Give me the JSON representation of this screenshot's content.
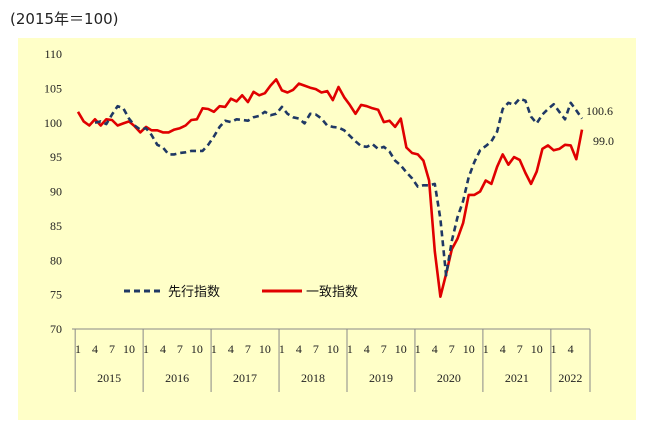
{
  "unit_label": "(2015年＝100)",
  "colors": {
    "background": "#FFFFC8",
    "leading": "#1F3864",
    "coincident": "#E00000"
  },
  "chart_data": {
    "type": "line",
    "ylim": [
      70,
      110
    ],
    "yticks": [
      70,
      75,
      80,
      85,
      90,
      95,
      100,
      105,
      110
    ],
    "grid": false,
    "legend_position": "center-left",
    "month_tick_labels": [
      "1",
      "4",
      "7",
      "10",
      "1",
      "4",
      "7",
      "10",
      "1",
      "4",
      "7",
      "10",
      "1",
      "4",
      "7",
      "10",
      "1",
      "4",
      "7",
      "10",
      "1",
      "4",
      "7",
      "10",
      "1",
      "4",
      "7",
      "10",
      "1",
      "4"
    ],
    "years": [
      "2015",
      "2016",
      "2017",
      "2018",
      "2019",
      "2020",
      "2021",
      "2022"
    ],
    "x_start": "2015-01",
    "series": [
      {
        "name": "先行指数",
        "style": "dashed",
        "end_label": "100.6",
        "values": [
          100.0,
          100.2,
          99.8,
          101.2,
          102.4,
          102.1,
          100.6,
          99.6,
          99.0,
          99.2,
          98.2,
          96.8,
          96.4,
          95.4,
          95.4,
          95.6,
          95.7,
          95.9,
          95.9,
          95.9,
          96.8,
          98.0,
          99.4,
          100.3,
          100.1,
          100.5,
          100.4,
          100.3,
          100.8,
          101.0,
          101.6,
          101.1,
          101.3,
          102.3,
          101.3,
          100.8,
          100.6,
          99.9,
          101.3,
          101.2,
          100.6,
          99.6,
          99.4,
          99.3,
          98.9,
          98.1,
          97.3,
          96.6,
          96.5,
          96.9,
          96.2,
          96.5,
          95.8,
          94.5,
          93.8,
          92.8,
          91.9,
          90.7,
          90.9,
          90.9,
          91.1,
          86.0,
          77.8,
          82.8,
          86.2,
          88.6,
          92.1,
          94.3,
          96.0,
          96.6,
          97.3,
          98.7,
          102.0,
          102.9,
          102.6,
          103.5,
          103.2,
          100.9,
          99.9,
          101.2,
          102.0,
          102.7,
          101.6,
          100.5,
          102.9,
          101.8,
          100.6
        ]
      },
      {
        "name": "一致指数",
        "style": "solid",
        "end_label": "99.0",
        "values": [
          101.6,
          100.2,
          99.6,
          100.5,
          99.6,
          100.5,
          100.4,
          99.6,
          99.9,
          100.2,
          99.5,
          98.6,
          99.4,
          98.9,
          98.9,
          98.6,
          98.6,
          99.0,
          99.2,
          99.6,
          100.4,
          100.5,
          102.1,
          102.0,
          101.6,
          102.4,
          102.3,
          103.5,
          103.1,
          104.0,
          103.0,
          104.5,
          104.0,
          104.3,
          105.4,
          106.3,
          104.7,
          104.4,
          104.8,
          105.7,
          105.4,
          105.1,
          104.9,
          104.4,
          104.6,
          103.3,
          105.2,
          103.7,
          102.6,
          101.3,
          102.6,
          102.4,
          102.1,
          101.9,
          100.1,
          100.3,
          99.4,
          100.6,
          96.4,
          95.6,
          95.4,
          94.5,
          91.6,
          81.3,
          74.7,
          78.0,
          81.6,
          83.1,
          85.4,
          89.5,
          89.5,
          90.0,
          91.6,
          91.1,
          93.6,
          95.4,
          93.9,
          95.0,
          94.6,
          92.7,
          91.1,
          92.9,
          96.2,
          96.7,
          96.0,
          96.2,
          96.8,
          96.7,
          94.7,
          99.0
        ]
      }
    ]
  }
}
